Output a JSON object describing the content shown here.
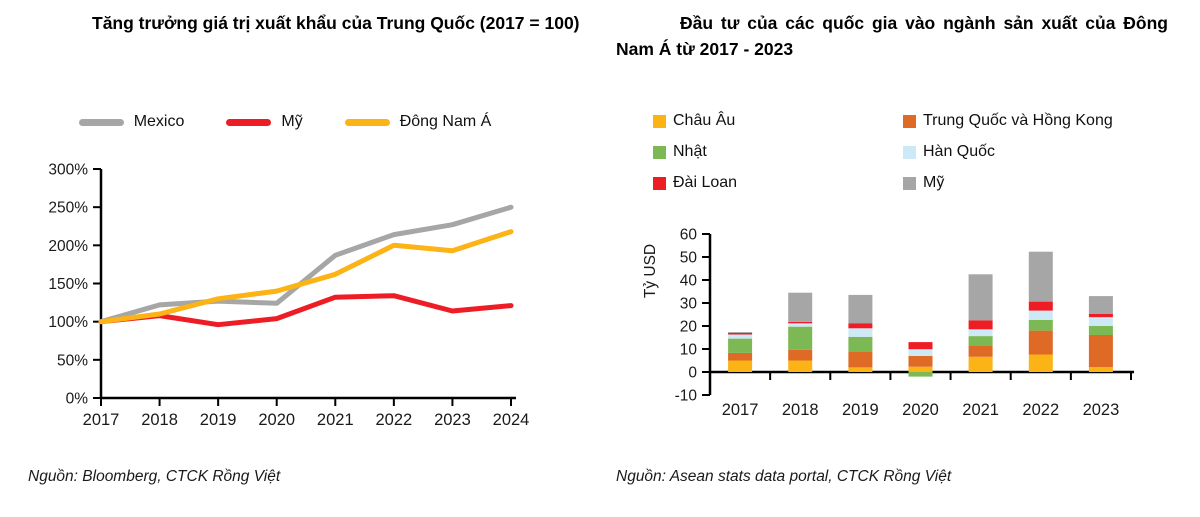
{
  "colors": {
    "background": "#ffffff",
    "text": "#1a1a1a",
    "axis": "#000000"
  },
  "sources": {
    "left": "Nguồn: Bloomberg, CTCK Rồng Việt",
    "right": "Nguồn:  Asean stats data portal, CTCK Rồng Việt"
  },
  "chart_data": [
    {
      "type": "line",
      "title": "Tăng trưởng giá trị xuất khẩu của Trung Quốc (2017 = 100)",
      "x": [
        2017,
        2018,
        2019,
        2020,
        2021,
        2022,
        2023,
        2024
      ],
      "series": [
        {
          "name": "Mexico",
          "color": "#A6A6A6",
          "values": [
            100,
            122,
            127,
            124,
            187,
            214,
            227,
            250
          ]
        },
        {
          "name": "Mỹ",
          "color": "#EE1C25",
          "values": [
            100,
            108,
            96,
            104,
            132,
            134,
            114,
            121
          ]
        },
        {
          "name": "Đông Nam Á",
          "color": "#FBB315",
          "values": [
            100,
            110,
            130,
            140,
            162,
            200,
            193,
            218
          ]
        }
      ],
      "xlabel": "",
      "ylabel": "",
      "ylim": [
        0,
        300
      ],
      "ytick_step": 50,
      "ytick_suffix": "%",
      "grid": false,
      "legend_position": "top"
    },
    {
      "type": "bar",
      "stacked": true,
      "title": "Đầu tư của các quốc gia vào ngành sản xuất của Đông Nam Á từ 2017 - 2023",
      "categories": [
        2017,
        2018,
        2019,
        2020,
        2021,
        2022,
        2023
      ],
      "series": [
        {
          "name": "Châu Âu",
          "color": "#FBB315",
          "values": [
            5,
            5,
            2,
            2.3,
            6.6,
            7.6,
            2.2
          ]
        },
        {
          "name": "Trung Quốc và Hồng Kong",
          "color": "#DE6A26",
          "values": [
            3.3,
            4.7,
            7,
            4.7,
            5,
            10.4,
            13.9
          ]
        },
        {
          "name": "Nhật",
          "color": "#7CB853",
          "values": [
            6.2,
            10,
            6.3,
            -2,
            4,
            4.6,
            3.9
          ]
        },
        {
          "name": "Hàn Quốc",
          "color": "#CDE9F6",
          "values": [
            1.8,
            1.5,
            3.7,
            2.9,
            3,
            4.1,
            3.8
          ]
        },
        {
          "name": "Đài Loan",
          "color": "#EE1C25",
          "values": [
            0.7,
            0.6,
            2.2,
            3.1,
            3.9,
            3.9,
            1.4
          ]
        },
        {
          "name": "Mỹ",
          "color": "#A6A6A6",
          "values": [
            0.4,
            12.7,
            12.3,
            0,
            20,
            21.7,
            7.8
          ]
        }
      ],
      "xlabel": "",
      "ylabel": "Tỷ USD",
      "ylim": [
        -10,
        60
      ],
      "ytick_step": 10,
      "grid": false,
      "legend_position": "top"
    }
  ]
}
